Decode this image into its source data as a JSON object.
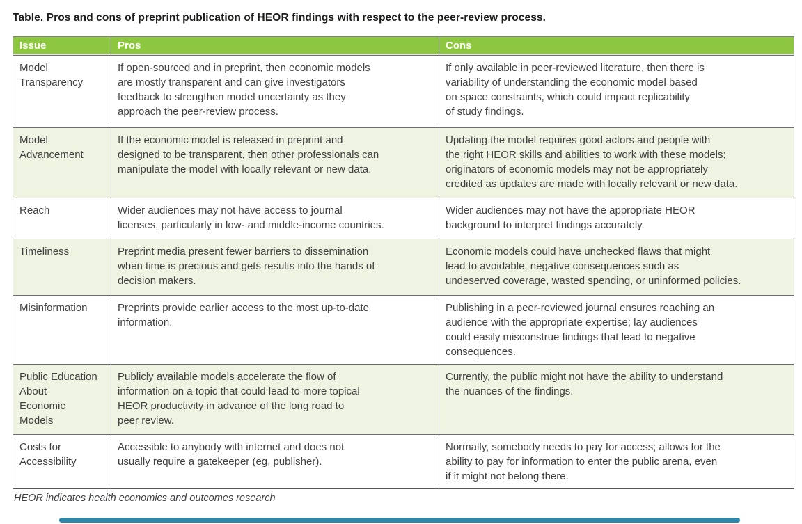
{
  "page": {
    "title": "Table. Pros and cons of preprint publication of HEOR findings with respect to the peer-review process.",
    "footnote": "HEOR indicates health economics and outcomes research"
  },
  "colors": {
    "header_bg": "#8dc63f",
    "header_text": "#ffffff",
    "row_alt_bg": "#eff3e2",
    "body_text": "#414042",
    "grid_line": "#6d6e71",
    "accent_bar": "#2e86ab"
  },
  "table": {
    "headers": [
      "Issue",
      "Pros",
      "Cons"
    ],
    "rows": [
      {
        "issue": "Model\nTransparency",
        "pros": "If open-sourced and in preprint, then economic models\nare mostly transparent and can give investigators\nfeedback to strengthen model uncertainty as they\napproach the peer-review process.",
        "cons": "If only available in peer-reviewed literature, then there is\nvariability of understanding the economic model based\non space constraints, which could impact replicability\nof study findings."
      },
      {
        "issue": "Model\nAdvancement",
        "pros": "If the economic model is released in preprint and\ndesigned to be transparent, then other professionals can\nmanipulate the model with locally relevant or new data.",
        "cons": "Updating the model requires good actors and people with\nthe right HEOR skills and abilities to work with these models;\noriginators of economic models may not be appropriately\ncredited as updates are made with locally relevant or new data."
      },
      {
        "issue": "Reach",
        "pros": "Wider audiences may not have access to journal\nlicenses, particularly in low- and middle-income countries.",
        "cons": "Wider audiences may not have the appropriate HEOR\nbackground to interpret findings accurately."
      },
      {
        "issue": "Timeliness",
        "pros": "Preprint media present fewer barriers to dissemination\nwhen time is precious and gets results into the hands of\ndecision makers.",
        "cons": "Economic models could have unchecked flaws that might\nlead to avoidable, negative consequences such as\nundeserved coverage, wasted spending, or uninformed policies."
      },
      {
        "issue": "Misinformation",
        "pros": "Preprints provide earlier access to the most up-to-date\ninformation.",
        "cons": "Publishing in a peer-reviewed journal ensures reaching an\naudience with the appropriate expertise; lay audiences\ncould easily misconstrue findings that lead to negative\nconsequences."
      },
      {
        "issue": "Public Education\nAbout\nEconomic\nModels",
        "pros": "Publicly available models accelerate the flow of\ninformation on a topic that could lead to more topical\nHEOR productivity in advance of the long road to\npeer review.",
        "cons": "Currently, the public might not have the ability to understand\nthe nuances of the findings."
      },
      {
        "issue": "Costs for\nAccessibility",
        "pros": "Accessible to anybody with internet and does not\nusually require a gatekeeper (eg, publisher).",
        "cons": "Normally, somebody needs to pay for access; allows for the\nability to pay for information to enter the public arena, even\nif it might not belong there."
      }
    ]
  }
}
